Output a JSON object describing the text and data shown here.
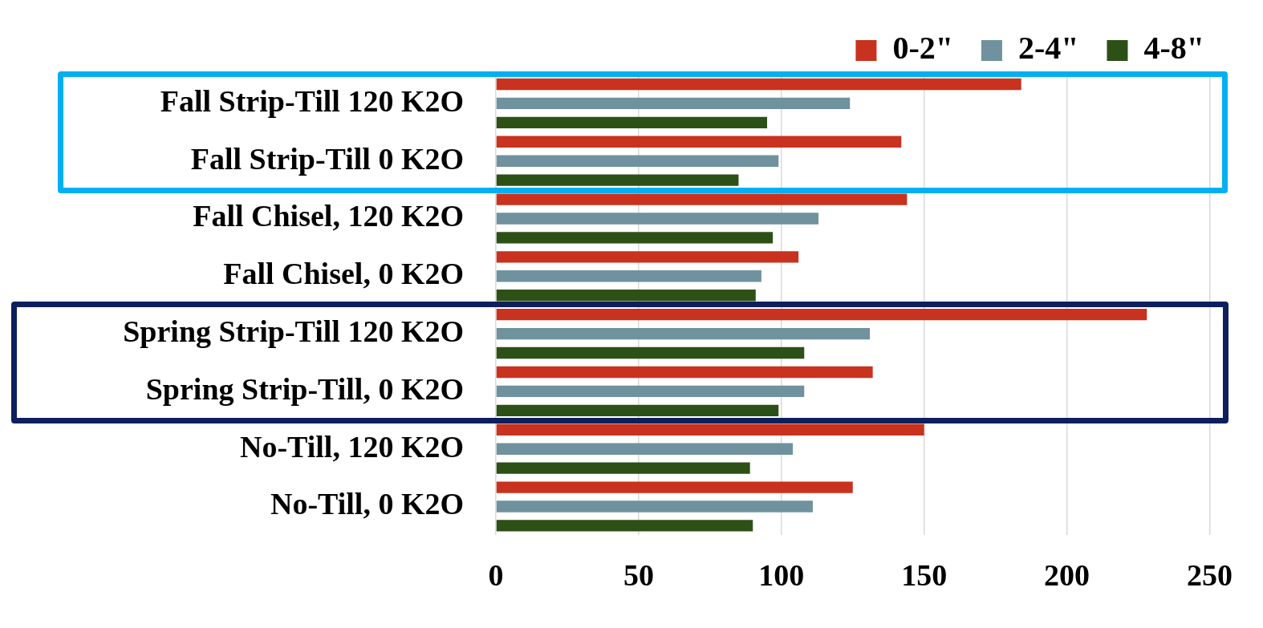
{
  "chart_data": {
    "type": "bar",
    "orientation": "horizontal",
    "categories": [
      "Fall Strip-Till 120 K2O",
      "Fall Strip-Till 0 K2O",
      "Fall Chisel, 120 K2O",
      "Fall Chisel, 0 K2O",
      "Spring Strip-Till 120 K2O",
      "Spring Strip-Till, 0 K2O",
      "No-Till, 120 K2O",
      "No-Till, 0 K2O"
    ],
    "series": [
      {
        "name": "0-2\"",
        "color": "#c8321e",
        "values": [
          184,
          142,
          144,
          106,
          228,
          132,
          150,
          125
        ]
      },
      {
        "name": "2-4\"",
        "color": "#6f929e",
        "values": [
          124,
          99,
          113,
          93,
          131,
          108,
          104,
          111
        ]
      },
      {
        "name": "4-8\"",
        "color": "#2d5016",
        "values": [
          95,
          85,
          97,
          91,
          108,
          99,
          89,
          90
        ]
      }
    ],
    "xlim": [
      0,
      250
    ],
    "xticks": [
      0,
      50,
      100,
      150,
      200,
      250
    ],
    "grid": "x",
    "legend": "top right"
  }
}
